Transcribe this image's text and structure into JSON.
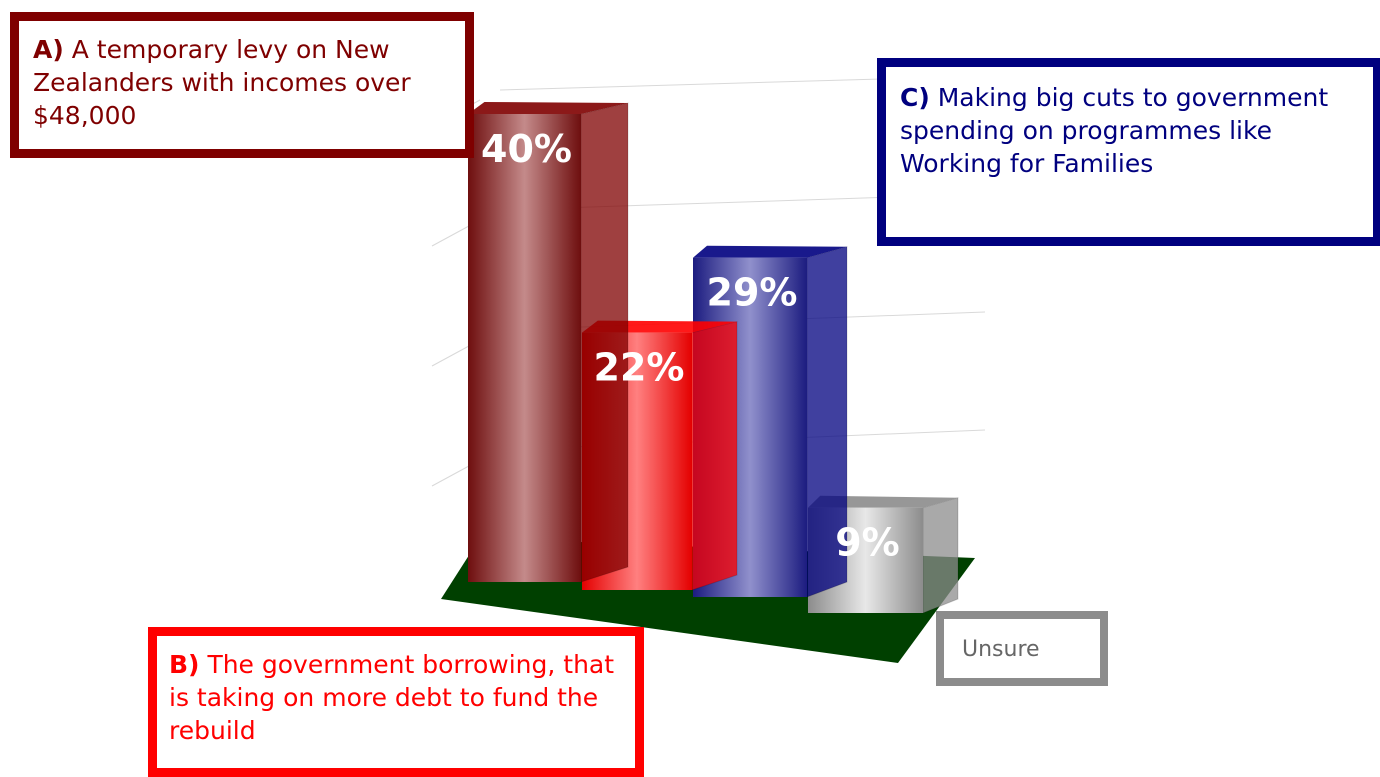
{
  "chart_data": {
    "type": "bar",
    "categories": [
      "A)",
      "B)",
      "C)",
      "Unsure"
    ],
    "values": [
      40,
      22,
      29,
      9
    ],
    "data_labels": [
      "40%",
      "22%",
      "29%",
      "9%"
    ],
    "series_colors": [
      "#7f0000",
      "#ff0000",
      "#00007f",
      "#8c8c8c"
    ],
    "ylim": [
      0,
      45
    ],
    "grid": true,
    "three_d": true
  },
  "callouts": {
    "a": {
      "letter": "A)",
      "text": "A temporary levy on New Zealanders with incomes over $48,000"
    },
    "b": {
      "letter": "B)",
      "text": "The government borrowing, that is taking on more debt to fund the rebuild"
    },
    "c": {
      "letter": "C)",
      "text": "Making big cuts to government spending on programmes like Working for Families"
    },
    "unsure": {
      "text": "Unsure"
    }
  },
  "colors": {
    "floor": "#004000",
    "grid": "#d9d9d9"
  }
}
